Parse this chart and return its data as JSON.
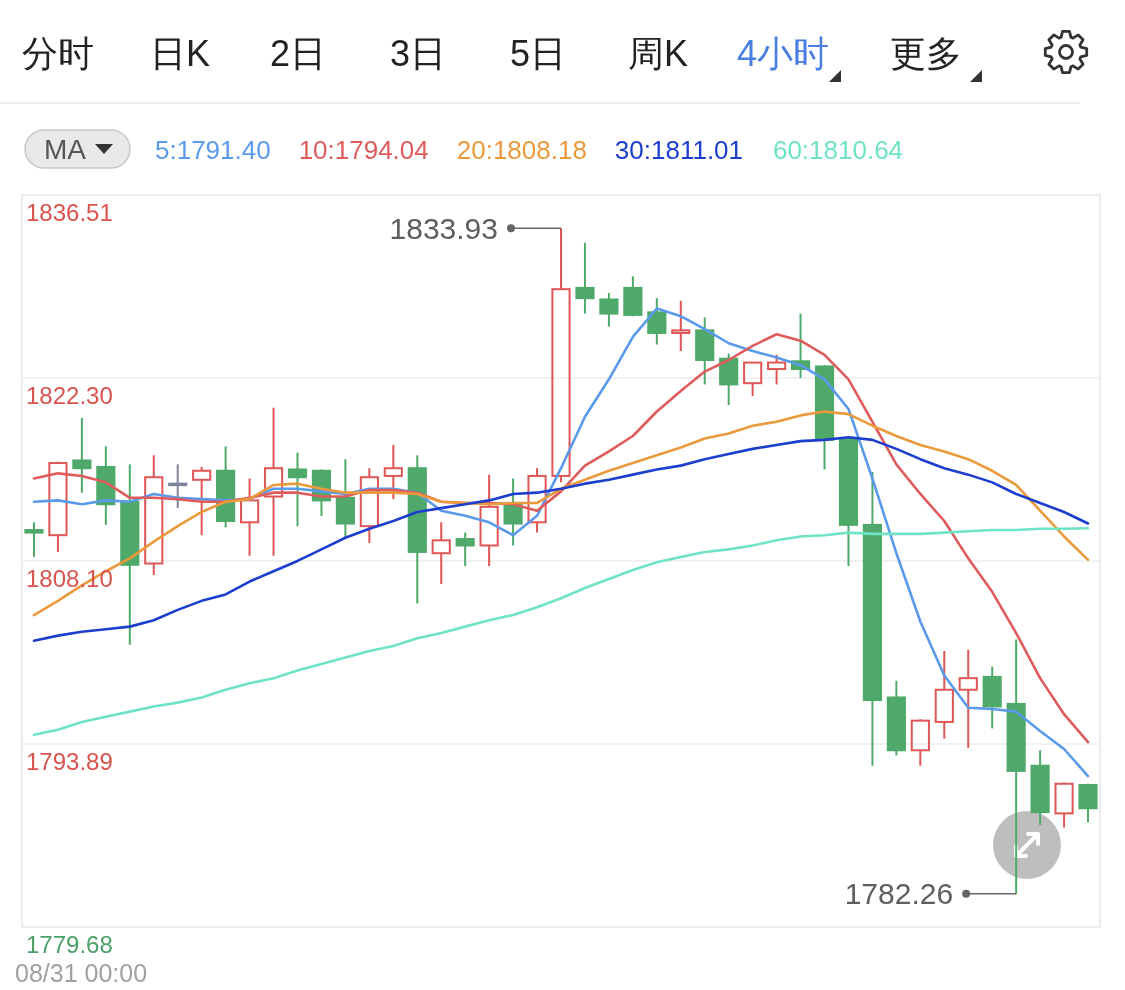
{
  "chart_data": {
    "type": "candlestick",
    "annotations": [
      "分时",
      "日K",
      "2日",
      "3日",
      "5日",
      "周K",
      "4小时",
      "更多",
      "1833.93",
      "1782.26",
      "08/31 00:00"
    ],
    "legend_title": "MA",
    "legend": "top",
    "categories": [
      null,
      null,
      null,
      null,
      null,
      null,
      null,
      null,
      null,
      null,
      null,
      null,
      null,
      null,
      null,
      null,
      null,
      null,
      null,
      null,
      null,
      null,
      null,
      null,
      null,
      null,
      null,
      null,
      null,
      null,
      null,
      null,
      null,
      null,
      null,
      null,
      null,
      null,
      null,
      null,
      null,
      null,
      null,
      null,
      null
    ],
    "ohlc": [
      [
        1810.5,
        1811.1,
        1808.4,
        1810.3
      ],
      [
        1810.1,
        1815.8,
        1808.8,
        1815.7
      ],
      [
        1815.9,
        1819.2,
        1813.4,
        1815.3
      ],
      [
        1815.4,
        1817.0,
        1810.9,
        1812.5
      ],
      [
        1812.7,
        1815.6,
        1801.6,
        1807.8
      ],
      [
        1807.9,
        1816.3,
        1807.0,
        1814.6
      ],
      [
        1814.1,
        1815.6,
        1812.2,
        1814.1
      ],
      [
        1814.4,
        1815.4,
        1810.1,
        1815.1
      ],
      [
        1815.1,
        1817.0,
        1810.7,
        1811.2
      ],
      [
        1811.1,
        1814.5,
        1808.5,
        1812.8
      ],
      [
        1813.1,
        1820.0,
        1808.5,
        1815.3
      ],
      [
        1815.2,
        1816.5,
        1810.8,
        1814.6
      ],
      [
        1815.1,
        1815.2,
        1811.6,
        1812.8
      ],
      [
        1813.0,
        1816.0,
        1809.9,
        1811.0
      ],
      [
        1810.8,
        1815.3,
        1809.5,
        1814.6
      ],
      [
        1814.7,
        1817.1,
        1812.9,
        1815.3
      ],
      [
        1815.3,
        1816.3,
        1804.8,
        1808.8
      ],
      [
        1808.7,
        1811.1,
        1806.3,
        1809.7
      ],
      [
        1809.8,
        1810.3,
        1807.7,
        1809.3
      ],
      [
        1809.3,
        1814.8,
        1807.7,
        1812.3
      ],
      [
        1812.6,
        1814.5,
        1809.3,
        1811.0
      ],
      [
        1811.1,
        1815.3,
        1810.3,
        1814.7
      ],
      [
        1814.7,
        1833.93,
        1814.2,
        1829.2
      ],
      [
        1829.3,
        1832.8,
        1827.3,
        1828.5
      ],
      [
        1828.4,
        1828.9,
        1826.3,
        1827.3
      ],
      [
        1829.3,
        1830.2,
        1827.1,
        1827.2
      ],
      [
        1827.4,
        1828.5,
        1824.9,
        1825.8
      ],
      [
        1825.8,
        1828.3,
        1824.4,
        1826.0
      ],
      [
        1826.0,
        1827.0,
        1821.8,
        1823.7
      ],
      [
        1823.8,
        1824.2,
        1820.2,
        1821.8
      ],
      [
        1821.9,
        1823.5,
        1820.9,
        1823.5
      ],
      [
        1823.0,
        1824.1,
        1821.8,
        1823.5
      ],
      [
        1823.6,
        1827.3,
        1822.3,
        1823.0
      ],
      [
        1823.2,
        1823.3,
        1815.2,
        1817.5
      ],
      [
        1817.6,
        1817.7,
        1807.7,
        1810.9
      ],
      [
        1810.9,
        1815.0,
        1792.2,
        1797.3
      ],
      [
        1797.5,
        1798.8,
        1793.0,
        1793.4
      ],
      [
        1793.4,
        1795.8,
        1792.2,
        1795.7
      ],
      [
        1795.6,
        1801.1,
        1794.3,
        1798.1
      ],
      [
        1798.1,
        1801.2,
        1793.6,
        1799.0
      ],
      [
        1799.1,
        1799.9,
        1795.1,
        1796.8
      ],
      [
        1797.0,
        1802.0,
        1782.26,
        1791.8
      ],
      [
        1792.2,
        1793.4,
        1787.6,
        1788.6
      ],
      [
        1788.5,
        1790.9,
        1787.4,
        1790.8
      ],
      [
        1790.7,
        1790.8,
        1787.8,
        1788.9
      ]
    ],
    "colors": [
      "#4ea96b",
      "#e05656",
      "#4ea96b",
      "#4ea96b",
      "#4ea96b",
      "#e05656",
      "#7d8499",
      "#e05656",
      "#4ea96b",
      "#e05656",
      "#e05656",
      "#4ea96b",
      "#4ea96b",
      "#4ea96b",
      "#e05656",
      "#e05656",
      "#4ea96b",
      "#e05656",
      "#4ea96b",
      "#e05656",
      "#4ea96b",
      "#e05656",
      "#e05656",
      "#4ea96b",
      "#4ea96b",
      "#4ea96b",
      "#4ea96b",
      "#e05656",
      "#4ea96b",
      "#4ea96b",
      "#e05656",
      "#e05656",
      "#4ea96b",
      "#4ea96b",
      "#4ea96b",
      "#4ea96b",
      "#4ea96b",
      "#e05656",
      "#e05656",
      "#e05656",
      "#4ea96b",
      "#4ea96b",
      "#4ea96b",
      "#e05656",
      "#4ea96b"
    ],
    "series": [
      {
        "name": "5:1791.40",
        "type": "line",
        "color": "#5b9aea",
        "values": [
          1812.7,
          1812.8,
          1812.5,
          1812.8,
          1812.7,
          1813.3,
          1813.0,
          1812.9,
          1812.8,
          1812.9,
          1813.7,
          1813.7,
          1813.5,
          1813.3,
          1813.7,
          1813.7,
          1813.4,
          1812.0,
          1811.6,
          1811.1,
          1810.1,
          1811.6,
          1815.3,
          1819.3,
          1822.2,
          1825.5,
          1827.7,
          1827.1,
          1826.1,
          1825.0,
          1824.4,
          1823.9,
          1823.3,
          1822.2,
          1819.9,
          1814.5,
          1808.7,
          1803.4,
          1799.2,
          1796.7,
          1796.6,
          1796.4,
          1794.9,
          1793.5,
          1791.4
        ]
      },
      {
        "name": "10:1794.04",
        "type": "line",
        "color": "#e05c5c",
        "values": [
          1814.5,
          1814.9,
          1814.7,
          1814.2,
          1813.0,
          1813.0,
          1812.9,
          1812.7,
          1812.7,
          1813.0,
          1813.4,
          1813.4,
          1813.1,
          1813.1,
          1813.6,
          1813.6,
          1813.4,
          1812.7,
          1812.6,
          1812.6,
          1812.5,
          1812.0,
          1813.5,
          1815.5,
          1816.6,
          1817.8,
          1819.7,
          1821.3,
          1822.8,
          1823.7,
          1824.8,
          1825.7,
          1825.2,
          1824.1,
          1822.2,
          1818.9,
          1815.6,
          1813.3,
          1811.2,
          1808.3,
          1805.7,
          1802.5,
          1799.0,
          1796.2,
          1794.04
        ]
      },
      {
        "name": "20:1808.18",
        "type": "line",
        "color": "#ea9a3c",
        "values": [
          1803.9,
          1805.0,
          1806.2,
          1807.3,
          1808.3,
          1809.6,
          1810.8,
          1811.9,
          1812.7,
          1812.9,
          1814.0,
          1814.1,
          1813.7,
          1813.4,
          1813.4,
          1813.4,
          1813.3,
          1812.7,
          1812.6,
          1812.5,
          1812.6,
          1812.6,
          1813.7,
          1814.4,
          1815.1,
          1815.7,
          1816.3,
          1816.9,
          1817.6,
          1818.0,
          1818.6,
          1818.9,
          1819.4,
          1819.7,
          1819.5,
          1818.6,
          1817.8,
          1817.1,
          1816.6,
          1816.0,
          1815.1,
          1814.0,
          1812.0,
          1810.0,
          1808.18
        ]
      },
      {
        "name": "30:1811.01",
        "type": "line",
        "color": "#1c3ecf",
        "values": [
          1801.9,
          1802.3,
          1802.6,
          1802.8,
          1803.0,
          1803.5,
          1804.3,
          1805.0,
          1805.5,
          1806.5,
          1807.3,
          1808.1,
          1809.0,
          1809.9,
          1810.6,
          1811.2,
          1811.9,
          1812.2,
          1812.5,
          1812.8,
          1813.3,
          1813.4,
          1813.7,
          1814.1,
          1814.4,
          1814.8,
          1815.2,
          1815.5,
          1816.0,
          1816.4,
          1816.8,
          1817.1,
          1817.4,
          1817.5,
          1817.7,
          1817.5,
          1816.8,
          1816.0,
          1815.3,
          1814.8,
          1814.2,
          1813.3,
          1812.6,
          1811.9,
          1811.01
        ]
      },
      {
        "name": "60:1810.64",
        "type": "line",
        "color": "#6fe3c5",
        "values": [
          1794.6,
          1795.0,
          1795.6,
          1796.0,
          1796.4,
          1796.8,
          1797.1,
          1797.5,
          1798.1,
          1798.6,
          1799.0,
          1799.6,
          1800.1,
          1800.6,
          1801.1,
          1801.5,
          1802.1,
          1802.5,
          1803.0,
          1803.5,
          1803.9,
          1804.5,
          1805.2,
          1806.0,
          1806.7,
          1807.4,
          1808.0,
          1808.4,
          1808.8,
          1809.0,
          1809.3,
          1809.7,
          1810.0,
          1810.1,
          1810.3,
          1810.2,
          1810.2,
          1810.2,
          1810.3,
          1810.4,
          1810.5,
          1810.5,
          1810.6,
          1810.6,
          1810.64
        ]
      }
    ],
    "ylim": [
      1779.68,
      1836.51
    ],
    "yticks": [
      1779.68,
      1793.89,
      {
        "value": 1808.1,
        "label": "1808.10"
      },
      {
        "value": 1822.3,
        "label": "1822.30"
      },
      1836.51
    ],
    "grid": "y"
  }
}
